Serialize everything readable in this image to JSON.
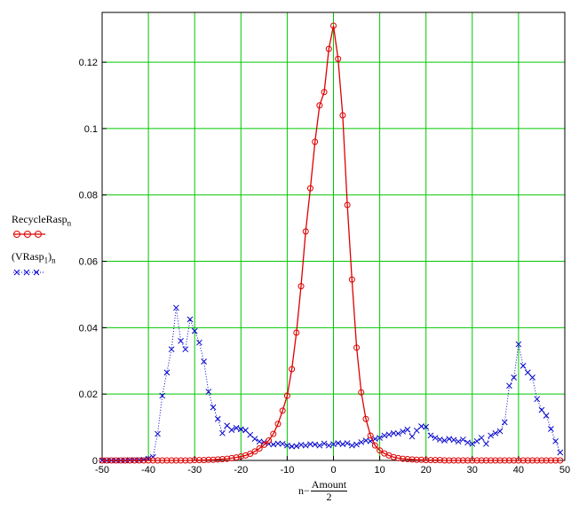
{
  "chart_data": {
    "type": "line",
    "xlim": [
      -50,
      50
    ],
    "ylim": [
      0,
      0.135
    ],
    "x_ticks": [
      -50,
      -40,
      -30,
      -20,
      -10,
      0,
      10,
      20,
      30,
      40,
      50
    ],
    "y_ticks": [
      0,
      0.02,
      0.04,
      0.06,
      0.08,
      0.1,
      0.12
    ],
    "x_tick_labels": [
      "-50",
      "-40",
      "-30",
      "-20",
      "-10",
      "0",
      "10",
      "20",
      "30",
      "40",
      "50"
    ],
    "y_tick_labels": [
      "0",
      "0.02",
      "0.04",
      "0.06",
      "0.08",
      "0.1",
      "0.12"
    ],
    "grid": true,
    "grid_color": "#00c800",
    "legend_position": "left",
    "xlabel": {
      "prefix": "n−",
      "numerator": "Amount",
      "denominator": "2"
    },
    "series": [
      {
        "legend_main": "RecycleRasp",
        "legend_sub": "n",
        "color": "#dd0000",
        "marker": "circle",
        "line": "solid",
        "x": [
          -50,
          -49,
          -48,
          -47,
          -46,
          -45,
          -44,
          -43,
          -42,
          -41,
          -40,
          -39,
          -38,
          -37,
          -36,
          -35,
          -34,
          -33,
          -32,
          -31,
          -30,
          -29,
          -28,
          -27,
          -26,
          -25,
          -24,
          -23,
          -22,
          -21,
          -20,
          -19,
          -18,
          -17,
          -16,
          -15,
          -14,
          -13,
          -12,
          -11,
          -10,
          -9,
          -8,
          -7,
          -6,
          -5,
          -4,
          -3,
          -2,
          -1,
          0,
          1,
          2,
          3,
          4,
          5,
          6,
          7,
          8,
          9,
          10,
          11,
          12,
          13,
          14,
          15,
          16,
          17,
          18,
          19,
          20,
          21,
          22,
          23,
          24,
          25,
          26,
          27,
          28,
          29,
          30,
          31,
          32,
          33,
          34,
          35,
          36,
          37,
          38,
          39,
          40,
          41,
          42,
          43,
          44,
          45,
          46,
          47,
          48,
          49
        ],
        "y": [
          0,
          0,
          0,
          0,
          0,
          0,
          0,
          0,
          0,
          0,
          0,
          0,
          0,
          0,
          0,
          0,
          0,
          0,
          0,
          0,
          0.0001,
          0.0001,
          0.0001,
          0.0002,
          0.0002,
          0.0003,
          0.0004,
          0.0005,
          0.0007,
          0.0009,
          0.0012,
          0.0015,
          0.002,
          0.0027,
          0.0036,
          0.0047,
          0.006,
          0.008,
          0.011,
          0.015,
          0.0195,
          0.0275,
          0.0385,
          0.0525,
          0.069,
          0.082,
          0.096,
          0.107,
          0.111,
          0.124,
          0.131,
          0.121,
          0.104,
          0.077,
          0.0545,
          0.034,
          0.0205,
          0.0125,
          0.0075,
          0.0045,
          0.003,
          0.0021,
          0.0015,
          0.001,
          0.0007,
          0.0005,
          0.0004,
          0.0003,
          0.0002,
          0.0002,
          0.0001,
          0.0001,
          0.0001,
          0.0001,
          0,
          0,
          0,
          0,
          0,
          0,
          0,
          0,
          0,
          0,
          0,
          0,
          0,
          0,
          0,
          0,
          0,
          0,
          0,
          0,
          0,
          0,
          0,
          0,
          0,
          0
        ]
      },
      {
        "legend_main": "(VRasp",
        "legend_sub1": "1",
        "legend_close": ")",
        "legend_sub": "n",
        "color": "#0000cc",
        "marker": "x",
        "line": "dotted",
        "x": [
          -50,
          -49,
          -48,
          -47,
          -46,
          -45,
          -44,
          -43,
          -42,
          -41,
          -40,
          -39,
          -38,
          -37,
          -36,
          -35,
          -34,
          -33,
          -32,
          -31,
          -30,
          -29,
          -28,
          -27,
          -26,
          -25,
          -24,
          -23,
          -22,
          -21,
          -20,
          -19,
          -18,
          -17,
          -16,
          -15,
          -14,
          -13,
          -12,
          -11,
          -10,
          -9,
          -8,
          -7,
          -6,
          -5,
          -4,
          -3,
          -2,
          -1,
          0,
          1,
          2,
          3,
          4,
          5,
          6,
          7,
          8,
          9,
          10,
          11,
          12,
          13,
          14,
          15,
          16,
          17,
          18,
          19,
          20,
          21,
          22,
          23,
          24,
          25,
          26,
          27,
          28,
          29,
          30,
          31,
          32,
          33,
          34,
          35,
          36,
          37,
          38,
          39,
          40,
          41,
          42,
          43,
          44,
          45,
          46,
          47,
          48,
          49
        ],
        "y": [
          0,
          0,
          0,
          0,
          0,
          0,
          0.0001,
          0.0001,
          0.0001,
          0.0002,
          0.0005,
          0.001,
          0.008,
          0.0195,
          0.0265,
          0.0335,
          0.046,
          0.036,
          0.0335,
          0.0425,
          0.039,
          0.0355,
          0.0298,
          0.0207,
          0.016,
          0.0125,
          0.0082,
          0.0105,
          0.0092,
          0.0098,
          0.0094,
          0.0091,
          0.0077,
          0.0065,
          0.0057,
          0.0055,
          0.005,
          0.0048,
          0.0051,
          0.005,
          0.0045,
          0.0042,
          0.0043,
          0.0047,
          0.0045,
          0.0049,
          0.0048,
          0.0045,
          0.0051,
          0.0045,
          0.0049,
          0.0052,
          0.0049,
          0.0052,
          0.0045,
          0.0048,
          0.0055,
          0.006,
          0.0058,
          0.0065,
          0.0068,
          0.0075,
          0.0078,
          0.0082,
          0.0081,
          0.0087,
          0.0093,
          0.0072,
          0.009,
          0.0103,
          0.0101,
          0.0075,
          0.0068,
          0.0063,
          0.006,
          0.0065,
          0.0062,
          0.0057,
          0.0063,
          0.0054,
          0.005,
          0.0058,
          0.0068,
          0.005,
          0.0075,
          0.0082,
          0.0088,
          0.0115,
          0.0225,
          0.025,
          0.035,
          0.0285,
          0.0265,
          0.025,
          0.0185,
          0.0152,
          0.0135,
          0.0095,
          0.0058,
          0.0024
        ]
      }
    ]
  }
}
